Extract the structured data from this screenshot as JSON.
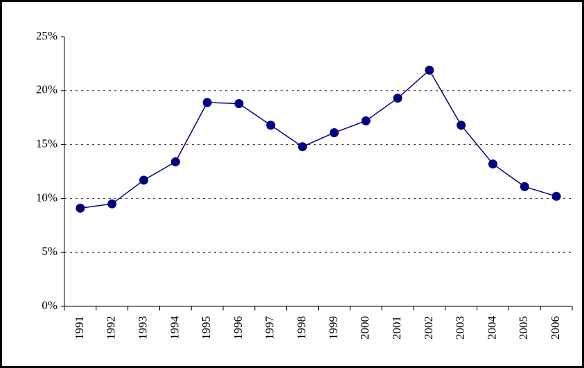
{
  "chart_data": {
    "type": "line",
    "categories": [
      "1991",
      "1992",
      "1993",
      "1994",
      "1995",
      "1996",
      "1997",
      "1998",
      "1999",
      "2000",
      "2001",
      "2002",
      "2003",
      "2004",
      "2005",
      "2006"
    ],
    "values": [
      9.1,
      9.5,
      11.7,
      13.4,
      18.9,
      18.8,
      16.8,
      14.8,
      16.1,
      17.2,
      19.3,
      21.9,
      16.8,
      13.2,
      11.1,
      10.2
    ],
    "color": "#000080",
    "ylim": [
      0,
      25
    ],
    "yticks": [
      {
        "value": 0,
        "label": "0%"
      },
      {
        "value": 5,
        "label": "5%"
      },
      {
        "value": 10,
        "label": "10%"
      },
      {
        "value": 15,
        "label": "15%"
      },
      {
        "value": 20,
        "label": "20%"
      },
      {
        "value": 25,
        "label": "25%"
      }
    ],
    "grid": true
  }
}
